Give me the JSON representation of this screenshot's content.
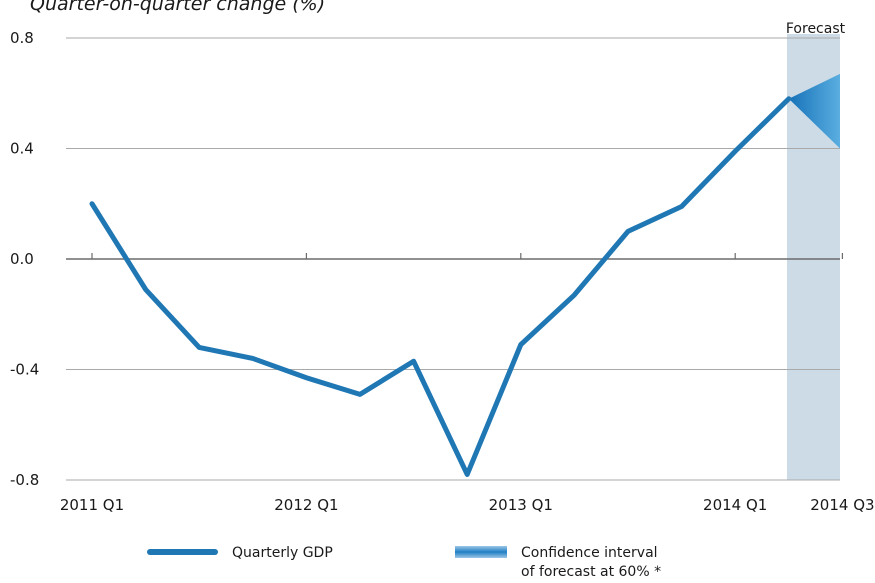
{
  "chart_data": {
    "type": "line",
    "title": "Quarter-on-quarter change (%)",
    "xlabel": "",
    "ylabel": "",
    "ylim": [
      -0.8,
      0.8
    ],
    "yticks": [
      0.8,
      0.4,
      0.0,
      -0.4,
      -0.8
    ],
    "ytick_labels": [
      "0.8",
      "0.4",
      "0.0",
      "-0.4",
      "-0.8"
    ],
    "xticks": [
      {
        "index": 0,
        "label": "2011 Q1"
      },
      {
        "index": 4,
        "label": "2012  Q1"
      },
      {
        "index": 8,
        "label": "2013 Q1"
      },
      {
        "index": 12,
        "label": "2014  Q1"
      },
      {
        "index": 14,
        "label": "2014  Q3"
      }
    ],
    "x": [
      "2011 Q1",
      "2011 Q2",
      "2011 Q3",
      "2011 Q4",
      "2012 Q1",
      "2012 Q2",
      "2012 Q3",
      "2012 Q4",
      "2013 Q1",
      "2013 Q2",
      "2013 Q3",
      "2013 Q4",
      "2014 Q1",
      "2014 Q2",
      "2014 Q3"
    ],
    "series": [
      {
        "name": "Quarterly GDP",
        "color": "#1f77b4",
        "values": [
          0.2,
          -0.11,
          -0.32,
          -0.36,
          -0.43,
          -0.49,
          -0.37,
          -0.78,
          -0.31,
          -0.13,
          0.1,
          0.19,
          0.39,
          0.58,
          null
        ]
      }
    ],
    "forecast": {
      "label": "Forecast",
      "from_index": 13,
      "to_index": 14,
      "interval_at_end": [
        0.4,
        0.67
      ],
      "shade_color": "#cddbe6",
      "interval_color": "#1f7fc4"
    },
    "legend": {
      "position": "bottom",
      "entries": [
        {
          "label": "Quarterly GDP"
        },
        {
          "label_line1": "Confidence interval",
          "label_line2": "of forecast at 60% *"
        }
      ]
    },
    "grid": "horizontal"
  }
}
